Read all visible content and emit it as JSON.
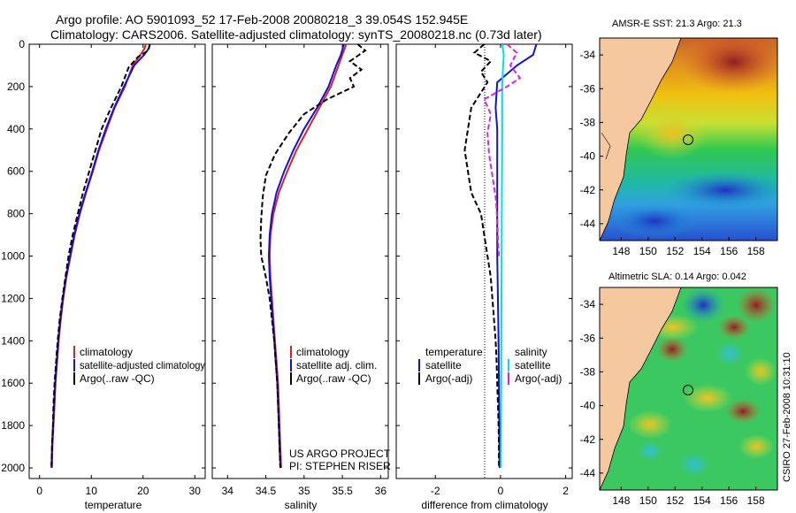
{
  "header": {
    "title_line1": "Argo profile: AO 5901093_52 17-Feb-2008 20080218_3 39.054S 152.945E",
    "title_line2": "Climatology: CARS2006. Satellite-adjusted climatology: synTS_20080218.nc (0.73d later)"
  },
  "colors": {
    "climatology": "#e02020",
    "satellite": "#1010e0",
    "argo": "#000000",
    "salinity_satellite": "#00e0e0",
    "salinity_argo": "#e020e0",
    "land": "#f5c8a0"
  },
  "y_ticks": [
    "0",
    "200",
    "400",
    "600",
    "800",
    "1000",
    "1200",
    "1400",
    "1600",
    "1800",
    "2000"
  ],
  "panels": {
    "temperature": {
      "xlabel": "temperature",
      "x_ticks": [
        "0",
        "10",
        "20",
        "30"
      ],
      "legend": [
        "climatology",
        "satellite-adjusted climatology",
        "Argo(..raw -QC)"
      ]
    },
    "salinity": {
      "xlabel": "salinity",
      "x_ticks": [
        "34",
        "34.5",
        "35",
        "35.5",
        "36"
      ],
      "legend": [
        "climatology",
        "satellite adj. clim.",
        "Argo(..raw -QC)"
      ],
      "project_line1": "US ARGO PROJECT",
      "project_line2": "PI: STEPHEN RISER"
    },
    "difference": {
      "xlabel": "difference from climatology",
      "x_ticks": [
        "-2",
        "0",
        "2"
      ],
      "legend_temp_title": "temperature",
      "legend_temp": [
        "satellite",
        "Argo(-adj)"
      ],
      "legend_sal_title": "salinity",
      "legend_sal": [
        "satellite",
        "Argo(-adj)"
      ]
    }
  },
  "maps": {
    "sst_title": "AMSR-E SST: 21.3 Argo: 21.3",
    "sla_title": "Altimetric SLA: 0.14 Argo: 0.042",
    "lon_ticks": [
      "148",
      "150",
      "152",
      "154",
      "156",
      "158"
    ],
    "lat_ticks": [
      "-34",
      "-36",
      "-38",
      "-40",
      "-42",
      "-44"
    ],
    "argo_position": {
      "lon": 152.945,
      "lat": -39.054
    }
  },
  "side_label": "CSIRO 27-Feb-2008 10:31:10",
  "chart_data": [
    {
      "type": "line",
      "title": "",
      "xlabel": "temperature",
      "ylabel": "",
      "xlim": [
        -2,
        32
      ],
      "ylim": [
        2050,
        0
      ],
      "series": [
        {
          "name": "climatology",
          "points": [
            [
              20.5,
              0
            ],
            [
              20.3,
              20
            ],
            [
              19.5,
              50
            ],
            [
              18.0,
              100
            ],
            [
              16.5,
              200
            ],
            [
              14.5,
              300
            ],
            [
              13.0,
              400
            ],
            [
              11.5,
              500
            ],
            [
              10.3,
              600
            ],
            [
              9.0,
              700
            ],
            [
              7.8,
              800
            ],
            [
              6.8,
              900
            ],
            [
              6.0,
              1000
            ],
            [
              5.2,
              1100
            ],
            [
              4.6,
              1200
            ],
            [
              4.1,
              1300
            ],
            [
              3.7,
              1400
            ],
            [
              3.4,
              1500
            ],
            [
              3.1,
              1600
            ],
            [
              2.9,
              1700
            ],
            [
              2.7,
              1800
            ],
            [
              2.5,
              1900
            ],
            [
              2.4,
              2000
            ]
          ]
        },
        {
          "name": "satellite-adjusted climatology",
          "points": [
            [
              21.3,
              0
            ],
            [
              21.1,
              20
            ],
            [
              20.2,
              50
            ],
            [
              18.3,
              100
            ],
            [
              16.3,
              200
            ],
            [
              14.4,
              300
            ],
            [
              12.8,
              400
            ],
            [
              11.4,
              500
            ],
            [
              10.2,
              600
            ],
            [
              8.9,
              700
            ],
            [
              7.7,
              800
            ],
            [
              6.7,
              900
            ],
            [
              5.9,
              1000
            ],
            [
              5.1,
              1100
            ],
            [
              4.5,
              1200
            ],
            [
              4.0,
              1300
            ],
            [
              3.6,
              1400
            ],
            [
              3.3,
              1500
            ],
            [
              3.0,
              1600
            ],
            [
              2.8,
              1700
            ],
            [
              2.6,
              1800
            ],
            [
              2.4,
              1900
            ],
            [
              2.3,
              2000
            ]
          ]
        },
        {
          "name": "Argo(..raw -QC)",
          "points": [
            [
              21.3,
              0
            ],
            [
              21.0,
              30
            ],
            [
              19.0,
              60
            ],
            [
              17.2,
              110
            ],
            [
              15.8,
              200
            ],
            [
              13.8,
              300
            ],
            [
              12.0,
              400
            ],
            [
              10.8,
              500
            ],
            [
              9.6,
              600
            ],
            [
              8.4,
              700
            ],
            [
              7.4,
              800
            ],
            [
              6.4,
              900
            ],
            [
              5.6,
              1000
            ],
            [
              5.0,
              1100
            ],
            [
              4.4,
              1200
            ],
            [
              3.9,
              1300
            ],
            [
              3.5,
              1400
            ],
            [
              3.2,
              1500
            ],
            [
              2.9,
              1600
            ],
            [
              2.7,
              1700
            ],
            [
              2.6,
              1800
            ],
            [
              2.4,
              1900
            ],
            [
              2.3,
              1990
            ]
          ]
        }
      ]
    },
    {
      "type": "line",
      "title": "",
      "xlabel": "salinity",
      "ylabel": "",
      "xlim": [
        33.8,
        36.1
      ],
      "ylim": [
        2050,
        0
      ],
      "series": [
        {
          "name": "climatology",
          "points": [
            [
              35.55,
              0
            ],
            [
              35.5,
              50
            ],
            [
              35.45,
              100
            ],
            [
              35.35,
              200
            ],
            [
              35.2,
              300
            ],
            [
              35.05,
              400
            ],
            [
              34.9,
              500
            ],
            [
              34.78,
              600
            ],
            [
              34.67,
              700
            ],
            [
              34.6,
              800
            ],
            [
              34.56,
              900
            ],
            [
              34.55,
              1000
            ],
            [
              34.56,
              1100
            ],
            [
              34.58,
              1200
            ],
            [
              34.6,
              1300
            ],
            [
              34.62,
              1400
            ],
            [
              34.64,
              1500
            ],
            [
              34.66,
              1600
            ],
            [
              34.67,
              1700
            ],
            [
              34.68,
              1800
            ],
            [
              34.69,
              1900
            ],
            [
              34.7,
              2000
            ]
          ]
        },
        {
          "name": "satellite adj. clim.",
          "points": [
            [
              35.52,
              0
            ],
            [
              35.48,
              50
            ],
            [
              35.42,
              100
            ],
            [
              35.32,
              200
            ],
            [
              35.17,
              300
            ],
            [
              35.0,
              400
            ],
            [
              34.86,
              500
            ],
            [
              34.74,
              600
            ],
            [
              34.64,
              700
            ],
            [
              34.58,
              800
            ],
            [
              34.55,
              900
            ],
            [
              34.54,
              1000
            ],
            [
              34.55,
              1100
            ],
            [
              34.57,
              1200
            ],
            [
              34.59,
              1300
            ],
            [
              34.61,
              1400
            ],
            [
              34.63,
              1500
            ],
            [
              34.65,
              1600
            ],
            [
              34.66,
              1700
            ],
            [
              34.67,
              1800
            ],
            [
              34.68,
              1900
            ],
            [
              34.69,
              2000
            ]
          ]
        },
        {
          "name": "Argo(..raw -QC)",
          "points": [
            [
              35.7,
              0
            ],
            [
              35.8,
              30
            ],
            [
              35.6,
              80
            ],
            [
              35.75,
              120
            ],
            [
              35.6,
              160
            ],
            [
              35.65,
              200
            ],
            [
              35.3,
              260
            ],
            [
              35.0,
              330
            ],
            [
              34.8,
              420
            ],
            [
              34.62,
              520
            ],
            [
              34.5,
              620
            ],
            [
              34.46,
              720
            ],
            [
              34.44,
              820
            ],
            [
              34.43,
              920
            ],
            [
              34.44,
              1000
            ],
            [
              34.5,
              1100
            ],
            [
              34.55,
              1200
            ],
            [
              34.58,
              1300
            ],
            [
              34.61,
              1400
            ],
            [
              34.63,
              1500
            ],
            [
              34.65,
              1600
            ],
            [
              34.66,
              1700
            ],
            [
              34.67,
              1800
            ],
            [
              34.68,
              1900
            ],
            [
              34.69,
              2000
            ]
          ]
        }
      ]
    },
    {
      "type": "line",
      "title": "",
      "xlabel": "difference from climatology",
      "ylabel": "",
      "xlim": [
        -3.2,
        2.2
      ],
      "ylim": [
        2050,
        0
      ],
      "series": [
        {
          "name": "temperature satellite",
          "points": [
            [
              1.1,
              0
            ],
            [
              1.0,
              50
            ],
            [
              0.5,
              100
            ],
            [
              -0.1,
              180
            ],
            [
              -0.15,
              300
            ],
            [
              -0.1,
              400
            ],
            [
              -0.1,
              500
            ],
            [
              -0.1,
              600
            ],
            [
              -0.1,
              700
            ],
            [
              -0.1,
              800
            ],
            [
              -0.1,
              900
            ],
            [
              -0.1,
              1000
            ],
            [
              -0.08,
              1200
            ],
            [
              -0.06,
              1400
            ],
            [
              -0.05,
              1600
            ],
            [
              -0.04,
              1800
            ],
            [
              -0.03,
              2000
            ]
          ]
        },
        {
          "name": "temperature Argo(-adj)",
          "points": [
            [
              -0.5,
              0
            ],
            [
              -0.8,
              40
            ],
            [
              -0.3,
              80
            ],
            [
              -0.6,
              130
            ],
            [
              -0.4,
              180
            ],
            [
              -0.9,
              300
            ],
            [
              -1.0,
              400
            ],
            [
              -1.1,
              500
            ],
            [
              -1.0,
              600
            ],
            [
              -0.9,
              700
            ],
            [
              -0.6,
              800
            ],
            [
              -0.5,
              900
            ],
            [
              -0.4,
              1000
            ],
            [
              -0.3,
              1100
            ],
            [
              -0.25,
              1200
            ],
            [
              -0.2,
              1300
            ],
            [
              -0.15,
              1400
            ],
            [
              -0.12,
              1500
            ],
            [
              -0.1,
              1600
            ],
            [
              -0.08,
              1700
            ],
            [
              -0.06,
              1800
            ],
            [
              -0.05,
              1900
            ],
            [
              -0.05,
              1990
            ]
          ]
        },
        {
          "name": "salinity satellite",
          "points": [
            [
              0.05,
              0
            ],
            [
              0.1,
              50
            ],
            [
              0.08,
              100
            ],
            [
              0.05,
              200
            ],
            [
              0.05,
              400
            ],
            [
              0.04,
              800
            ],
            [
              0.03,
              1200
            ],
            [
              0.02,
              1600
            ],
            [
              0.01,
              2000
            ]
          ]
        },
        {
          "name": "salinity Argo(-adj)",
          "points": [
            [
              0.2,
              0
            ],
            [
              0.5,
              40
            ],
            [
              0.3,
              100
            ],
            [
              0.6,
              160
            ],
            [
              0.2,
              200
            ],
            [
              -0.5,
              260
            ],
            [
              -0.3,
              330
            ],
            [
              -0.4,
              420
            ],
            [
              -0.35,
              520
            ],
            [
              -0.25,
              620
            ],
            [
              -0.15,
              720
            ],
            [
              -0.1,
              820
            ],
            [
              -0.08,
              920
            ],
            [
              -0.05,
              1000
            ]
          ]
        }
      ]
    }
  ]
}
